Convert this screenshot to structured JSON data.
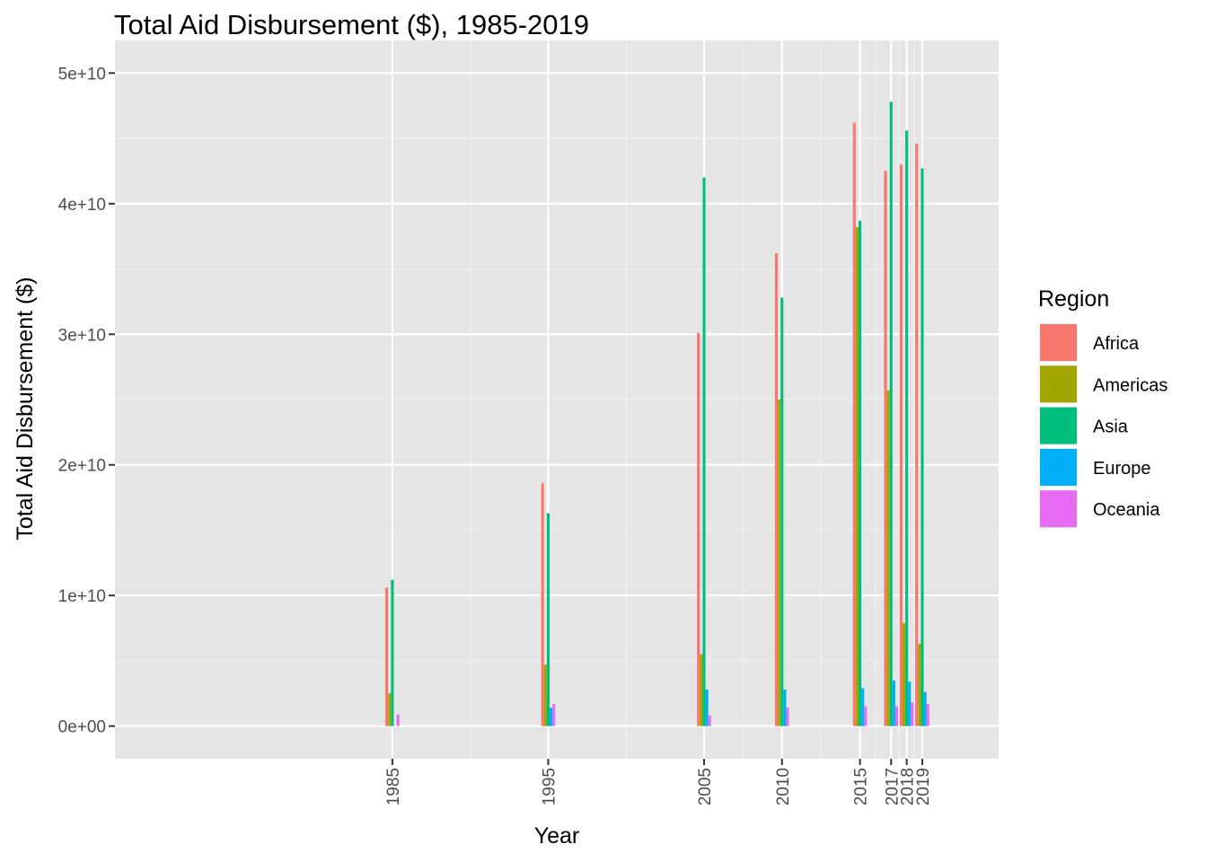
{
  "chart_data": {
    "type": "bar",
    "title": "Total Aid Disbursement ($), 1985-2019",
    "xlabel": "Year",
    "ylabel": "Total Aid Disbursement ($)",
    "x": [
      1985,
      1995,
      2005,
      2010,
      2015,
      2017,
      2018,
      2019
    ],
    "x_axis_scale": "continuous",
    "xlim": [
      1967.2,
      2023.9
    ],
    "ylim": [
      -2500000000,
      52500000000
    ],
    "yticks": [
      0,
      10000000000,
      20000000000,
      30000000000,
      40000000000,
      50000000000
    ],
    "ytick_labels": [
      "0e+00",
      "1e+10",
      "2e+10",
      "3e+10",
      "4e+10",
      "5e+10"
    ],
    "x_minor_gridlines": [
      1990,
      2000,
      2007.5,
      2012.5,
      2016,
      2017.5,
      2018.5
    ],
    "grid": true,
    "background": "#e5e5e5",
    "legend": {
      "title": "Region",
      "position": "right"
    },
    "series": [
      {
        "name": "Africa",
        "color": "#f8766d",
        "values": [
          10600000000,
          18600000000,
          30100000000,
          36200000000,
          46200000000,
          42500000000,
          43000000000,
          44600000000
        ]
      },
      {
        "name": "Americas",
        "color": "#a3a500",
        "values": [
          2500000000,
          4700000000,
          5500000000,
          25000000000,
          38200000000,
          25700000000,
          7900000000,
          6300000000
        ]
      },
      {
        "name": "Asia",
        "color": "#00bf7d",
        "values": [
          11200000000,
          16300000000,
          42000000000,
          32800000000,
          38700000000,
          47800000000,
          45600000000,
          42700000000
        ]
      },
      {
        "name": "Europe",
        "color": "#00b0f6",
        "values": [
          0,
          1400000000,
          2800000000,
          2800000000,
          2900000000,
          3500000000,
          3400000000,
          2600000000
        ]
      },
      {
        "name": "Oceania",
        "color": "#e76bf3",
        "values": [
          900000000,
          1700000000,
          800000000,
          1400000000,
          1500000000,
          1500000000,
          1800000000,
          1700000000
        ]
      }
    ]
  }
}
